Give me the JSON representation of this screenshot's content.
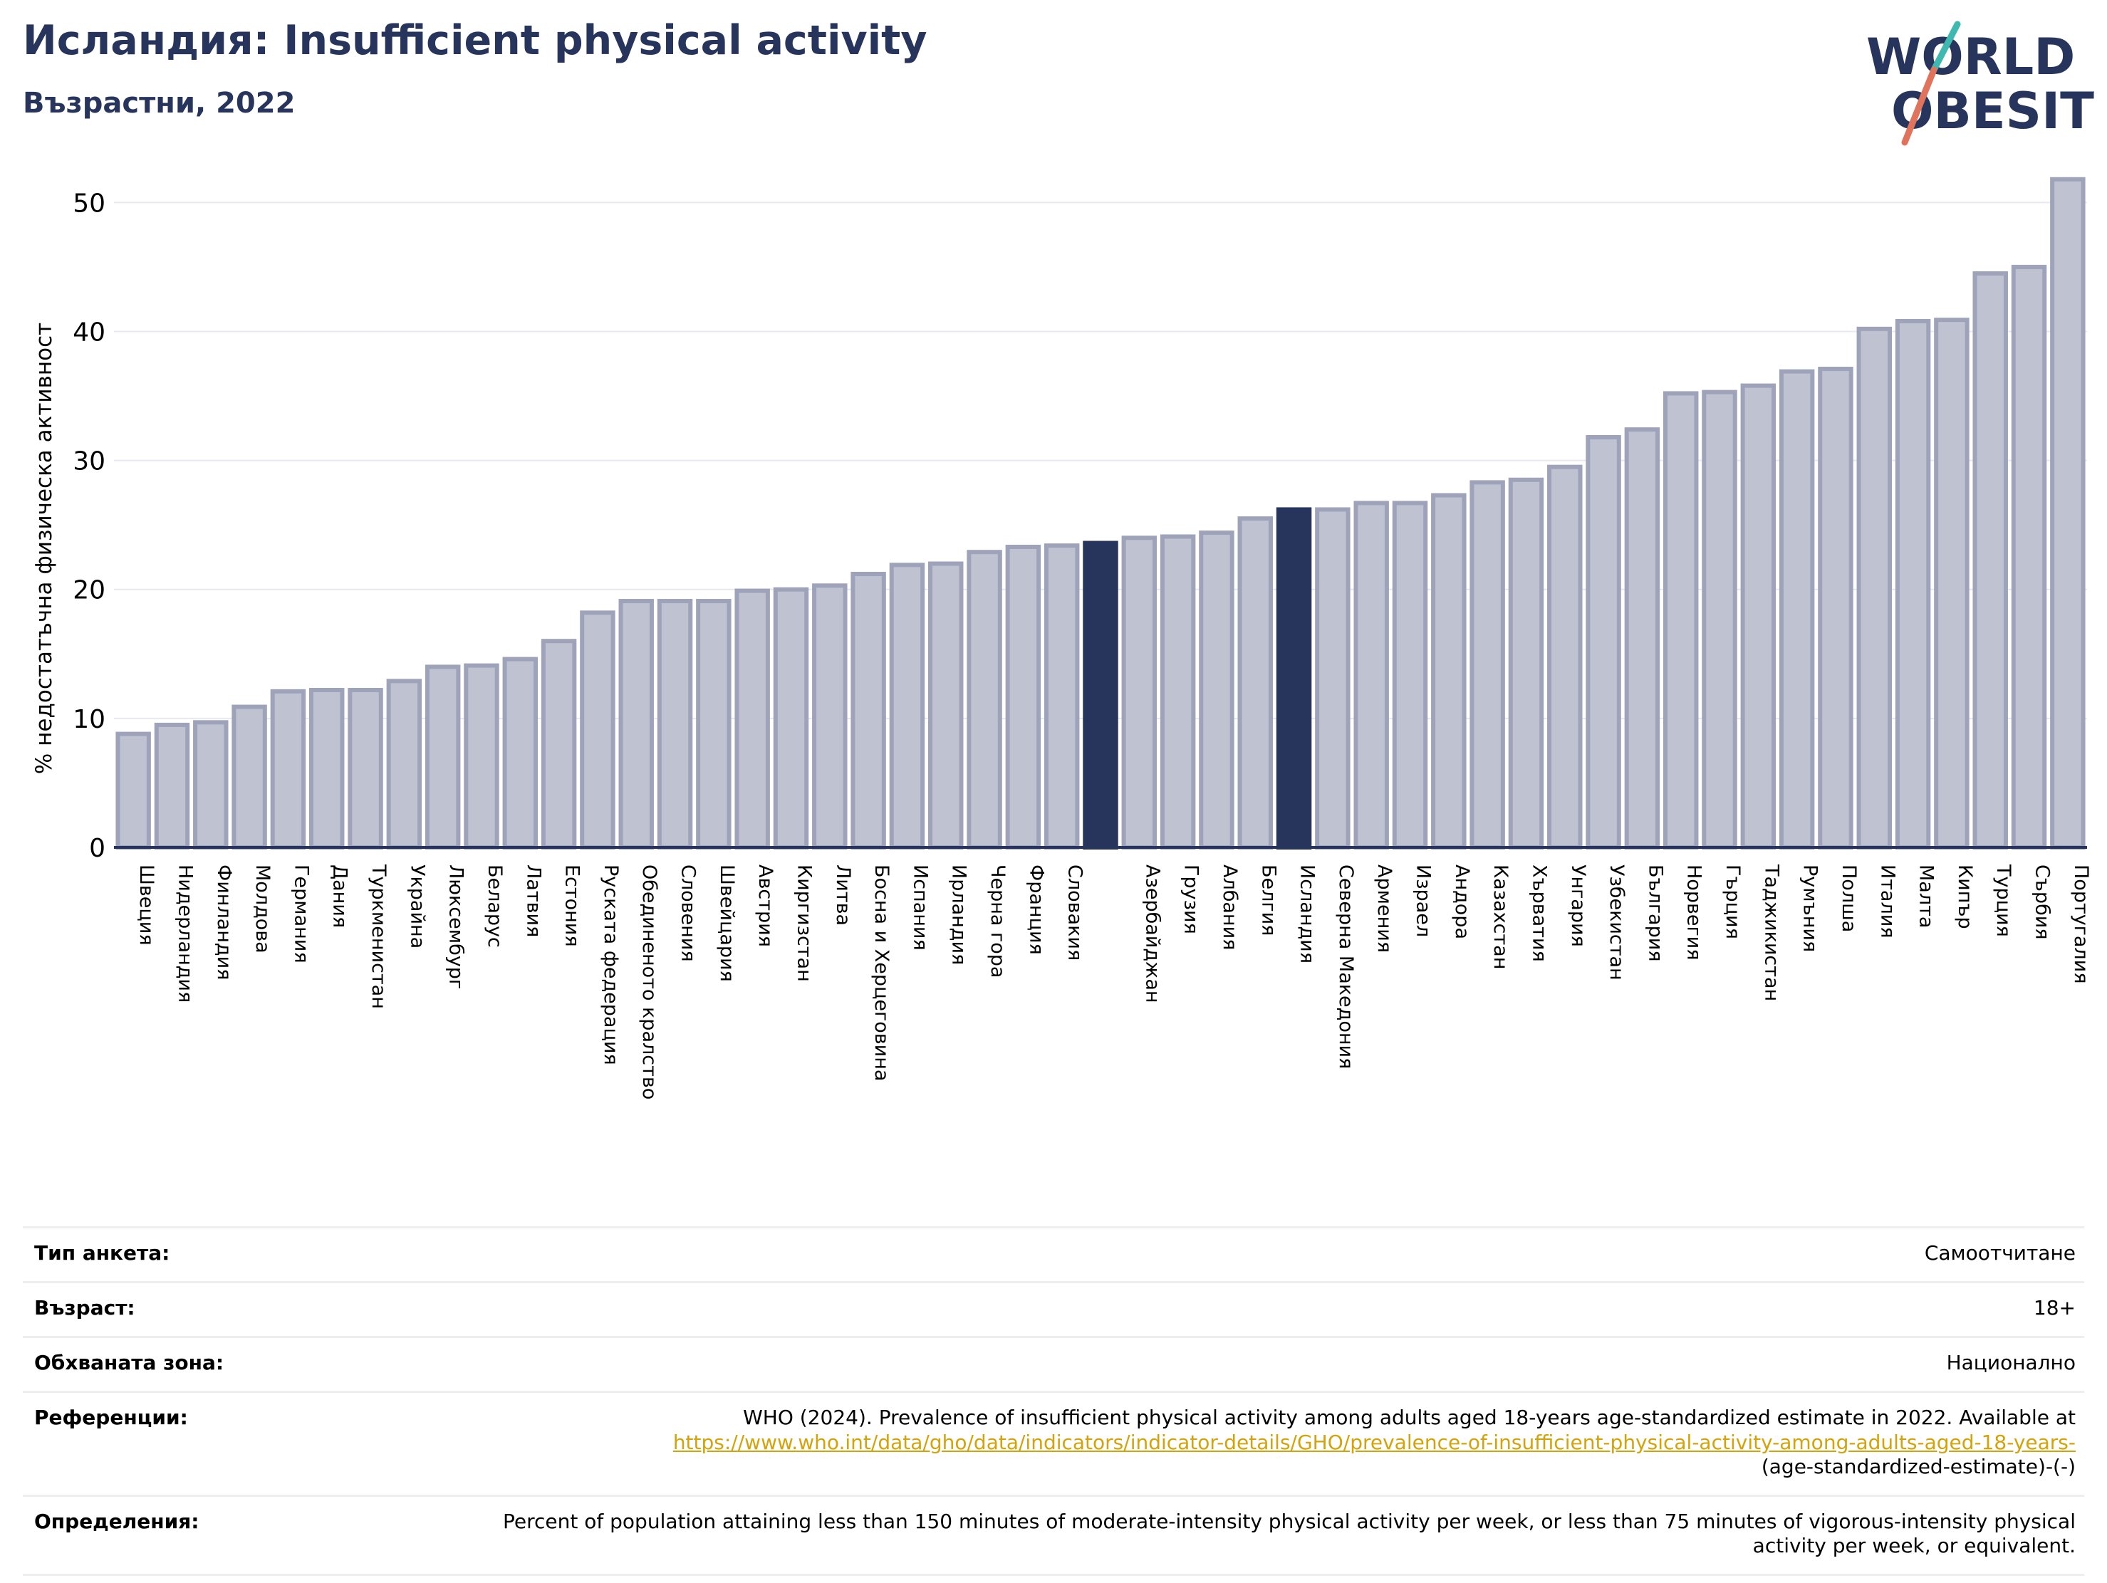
{
  "header": {
    "title": "Исландия: Insufficient physical activity",
    "subtitle": "Възрастни, 2022"
  },
  "logo": {
    "line1": "WORLD",
    "line2": "OBESITY"
  },
  "colors": {
    "bar": "#bfc2d0",
    "bar_edge": "#9ea3ba",
    "highlight": "#27345c",
    "axis": "#27345c",
    "grid": "#e8e8ee"
  },
  "chart_data": {
    "type": "bar",
    "ylabel": "% недостатъчна физическа активност",
    "ylim": [
      0,
      53
    ],
    "yticks": [
      0,
      10,
      20,
      30,
      40,
      50
    ],
    "grid": true,
    "categories": [
      "Швеция",
      "Нидерландия",
      "Финландия",
      "Молдова",
      "Германия",
      "Дания",
      "Туркменистан",
      "Украйна",
      "Люксембург",
      "Беларус",
      "Латвия",
      "Естония",
      "Руската федерация",
      "Обединеното кралство",
      "Словения",
      "Швейцария",
      "Австрия",
      "Киргизстан",
      "Литва",
      "Босна и Херцеговина",
      "Испания",
      "Ирландия",
      "Черна гора",
      "Франция",
      "Словакия",
      "",
      "Азербайджан",
      "Грузия",
      "Албания",
      "Белгия",
      "Исландия",
      "Северна Македония",
      "Армения",
      "Израел",
      "Андора",
      "Казахстан",
      "Хърватия",
      "Унгария",
      "Узбекистан",
      "България",
      "Норвегия",
      "Гърция",
      "Таджикистан",
      "Румъния",
      "Полша",
      "Италия",
      "Малта",
      "Кипър",
      "Турция",
      "Сърбия",
      "Португалия"
    ],
    "values": [
      8.8,
      9.5,
      9.7,
      10.9,
      12.1,
      12.2,
      12.2,
      12.9,
      14.0,
      14.1,
      14.6,
      16.0,
      18.2,
      19.1,
      19.1,
      19.1,
      19.9,
      20.0,
      20.3,
      21.2,
      21.9,
      22.0,
      22.9,
      23.3,
      23.4,
      23.6,
      24.0,
      24.1,
      24.4,
      25.5,
      26.2,
      26.2,
      26.7,
      26.7,
      27.3,
      28.3,
      28.5,
      29.5,
      31.8,
      32.4,
      35.2,
      35.3,
      35.8,
      36.9,
      37.1,
      40.2,
      40.8,
      40.9,
      44.5,
      45.0,
      51.8
    ],
    "highlight_indices": [
      25,
      30
    ]
  },
  "info": [
    {
      "label": "Тип анкета:",
      "value": "Самоотчитане"
    },
    {
      "label": "Възраст:",
      "value": "18+"
    },
    {
      "label": "Обхваната зона:",
      "value": "Национално"
    },
    {
      "label": "Референции:",
      "text": "WHO (2024). Prevalence of insufficient physical activity among adults aged 18-years age-standardized estimate in 2022. Available at",
      "link": "https://www.who.int/data/gho/data/indicators/indicator-details/GHO/prevalence-of-insufficient-physical-activity-among-adults-aged-18-years-",
      "text2": "(age-standardized-estimate)-(-)"
    },
    {
      "label": "Определения:",
      "value": "Percent of population attaining less than 150 minutes of moderate-intensity physical activity per week, or less than 75 minutes of vigorous-intensity physical activity per week, or equivalent."
    }
  ]
}
